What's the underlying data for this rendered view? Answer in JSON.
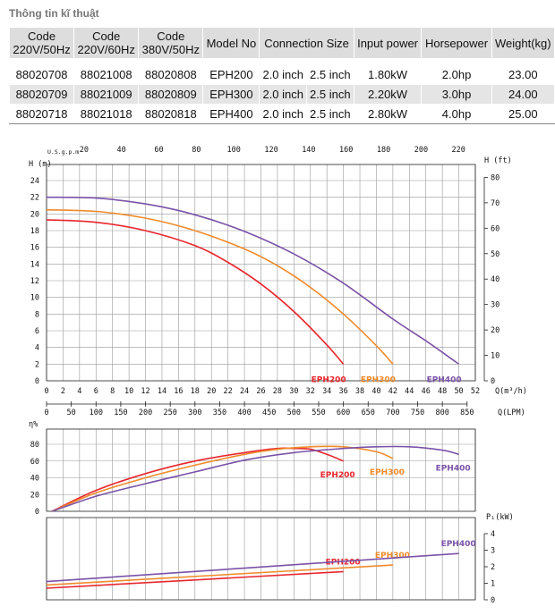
{
  "title": "Thông tin kĩ thuật",
  "table": {
    "headers": [
      "Code\n220V/50Hz",
      "Code\n220V/60Hz",
      "Code\n380V/50Hz",
      "Model No",
      "Connection Size",
      "Input power",
      "Horsepower",
      "Weight(kg)"
    ],
    "h": {
      "c1a": "Code",
      "c1b": "220V/50Hz",
      "c2a": "Code",
      "c2b": "220V/60Hz",
      "c3a": "Code",
      "c3b": "380V/50Hz",
      "model": "Model No",
      "conn": "Connection Size",
      "power": "Input power",
      "hp": "Horsepower",
      "weight": "Weight(kg)"
    },
    "rows": [
      {
        "c1": "88020708",
        "c2": "88021008",
        "c3": "88020808",
        "model": "EPH200",
        "in": "2.0 inch",
        "out": "2.5 inch",
        "power": "1.80kW",
        "hp": "2.0hp",
        "weight": "23.00"
      },
      {
        "c1": "88020709",
        "c2": "88021009",
        "c3": "88020809",
        "model": "EPH300",
        "in": "2.0 inch",
        "out": "2.5 inch",
        "power": "2.20kW",
        "hp": "3.0hp",
        "weight": "24.00"
      },
      {
        "c1": "88020718",
        "c2": "88021018",
        "c3": "88020818",
        "model": "EPH400",
        "in": "2.0 inch",
        "out": "2.5 inch",
        "power": "2.80kW",
        "hp": "4.0hp",
        "weight": "25.00"
      }
    ]
  },
  "colors": {
    "EPH200": "#e8262d",
    "EPH300": "#f08a2a",
    "EPH400": "#7a52a8"
  },
  "chart_data": [
    {
      "type": "line",
      "top_axis_label": "U.S.g.p.m",
      "top_ticks": [
        "20",
        "40",
        "60",
        "80",
        "100",
        "120",
        "140",
        "160",
        "180",
        "200",
        "220"
      ],
      "ylabel": "H (m)",
      "y2label": "H (ft)",
      "xlabel": "Q(m³/h)",
      "x2label": "Q(LPM)",
      "xlim": [
        0,
        52
      ],
      "ylim": [
        0,
        24
      ],
      "yticks": [
        "0",
        "2",
        "4",
        "6",
        "8",
        "10",
        "12",
        "14",
        "16",
        "18",
        "20",
        "22",
        "24"
      ],
      "y2ticks": [
        "0",
        "10",
        "20",
        "30",
        "40",
        "50",
        "60",
        "70",
        "80"
      ],
      "xticks": [
        "0",
        "2",
        "4",
        "6",
        "8",
        "10",
        "12",
        "14",
        "16",
        "18",
        "20",
        "22",
        "24",
        "26",
        "28",
        "30",
        "32",
        "34",
        "36",
        "38",
        "40",
        "42",
        "44",
        "46",
        "48",
        "50",
        "52"
      ],
      "x2ticks": [
        "0",
        "50",
        "100",
        "150",
        "200",
        "250",
        "300",
        "350",
        "400",
        "450",
        "500",
        "550",
        "600",
        "650",
        "700",
        "750",
        "800",
        "850"
      ],
      "series": [
        {
          "name": "EPH200",
          "x": [
            0,
            6,
            12,
            18,
            22,
            26,
            30,
            34,
            36
          ],
          "y": [
            19.3,
            19.0,
            18.0,
            16.2,
            14.2,
            11.6,
            8.3,
            4.3,
            2.0
          ]
        },
        {
          "name": "EPH300",
          "x": [
            0,
            6,
            12,
            18,
            24,
            28,
            32,
            36,
            40,
            42
          ],
          "y": [
            20.5,
            20.3,
            19.5,
            18.0,
            15.8,
            13.8,
            11.2,
            8.0,
            4.2,
            2.0
          ]
        },
        {
          "name": "EPH400",
          "x": [
            0,
            6,
            12,
            18,
            24,
            30,
            36,
            42,
            46,
            50
          ],
          "y": [
            22.0,
            21.9,
            21.2,
            19.9,
            17.9,
            15.2,
            11.7,
            7.4,
            4.8,
            2.0
          ]
        }
      ]
    },
    {
      "type": "line",
      "ylabel": "η%",
      "ylim": [
        0,
        100
      ],
      "yticks": [
        "0",
        "20",
        "40",
        "60",
        "80"
      ],
      "xlim": [
        0,
        52
      ],
      "series": [
        {
          "name": "EPH200",
          "x": [
            0,
            6,
            12,
            18,
            24,
            28,
            30,
            32,
            34,
            36
          ],
          "y": [
            0,
            25,
            45,
            60,
            70,
            75,
            75,
            74,
            68,
            60
          ]
        },
        {
          "name": "EPH300",
          "x": [
            0,
            6,
            12,
            18,
            24,
            28,
            32,
            36,
            40,
            42
          ],
          "y": [
            0,
            22,
            40,
            55,
            68,
            74,
            77,
            77,
            71,
            63
          ]
        },
        {
          "name": "EPH400",
          "x": [
            0,
            6,
            12,
            18,
            24,
            30,
            36,
            40,
            44,
            48,
            50
          ],
          "y": [
            0,
            18,
            33,
            47,
            61,
            70,
            75,
            77,
            77,
            73,
            68
          ]
        }
      ]
    },
    {
      "type": "line",
      "ylabel": "P₁(kW)",
      "ylim": [
        0,
        4.5
      ],
      "yticks": [
        "0",
        "1",
        "2",
        "3",
        "4"
      ],
      "xlim": [
        0,
        52
      ],
      "series": [
        {
          "name": "EPH200",
          "x": [
            0,
            36
          ],
          "y": [
            0.7,
            1.7
          ]
        },
        {
          "name": "EPH300",
          "x": [
            0,
            42
          ],
          "y": [
            0.9,
            2.1
          ]
        },
        {
          "name": "EPH400",
          "x": [
            0,
            50
          ],
          "y": [
            1.1,
            2.8
          ]
        }
      ]
    }
  ]
}
